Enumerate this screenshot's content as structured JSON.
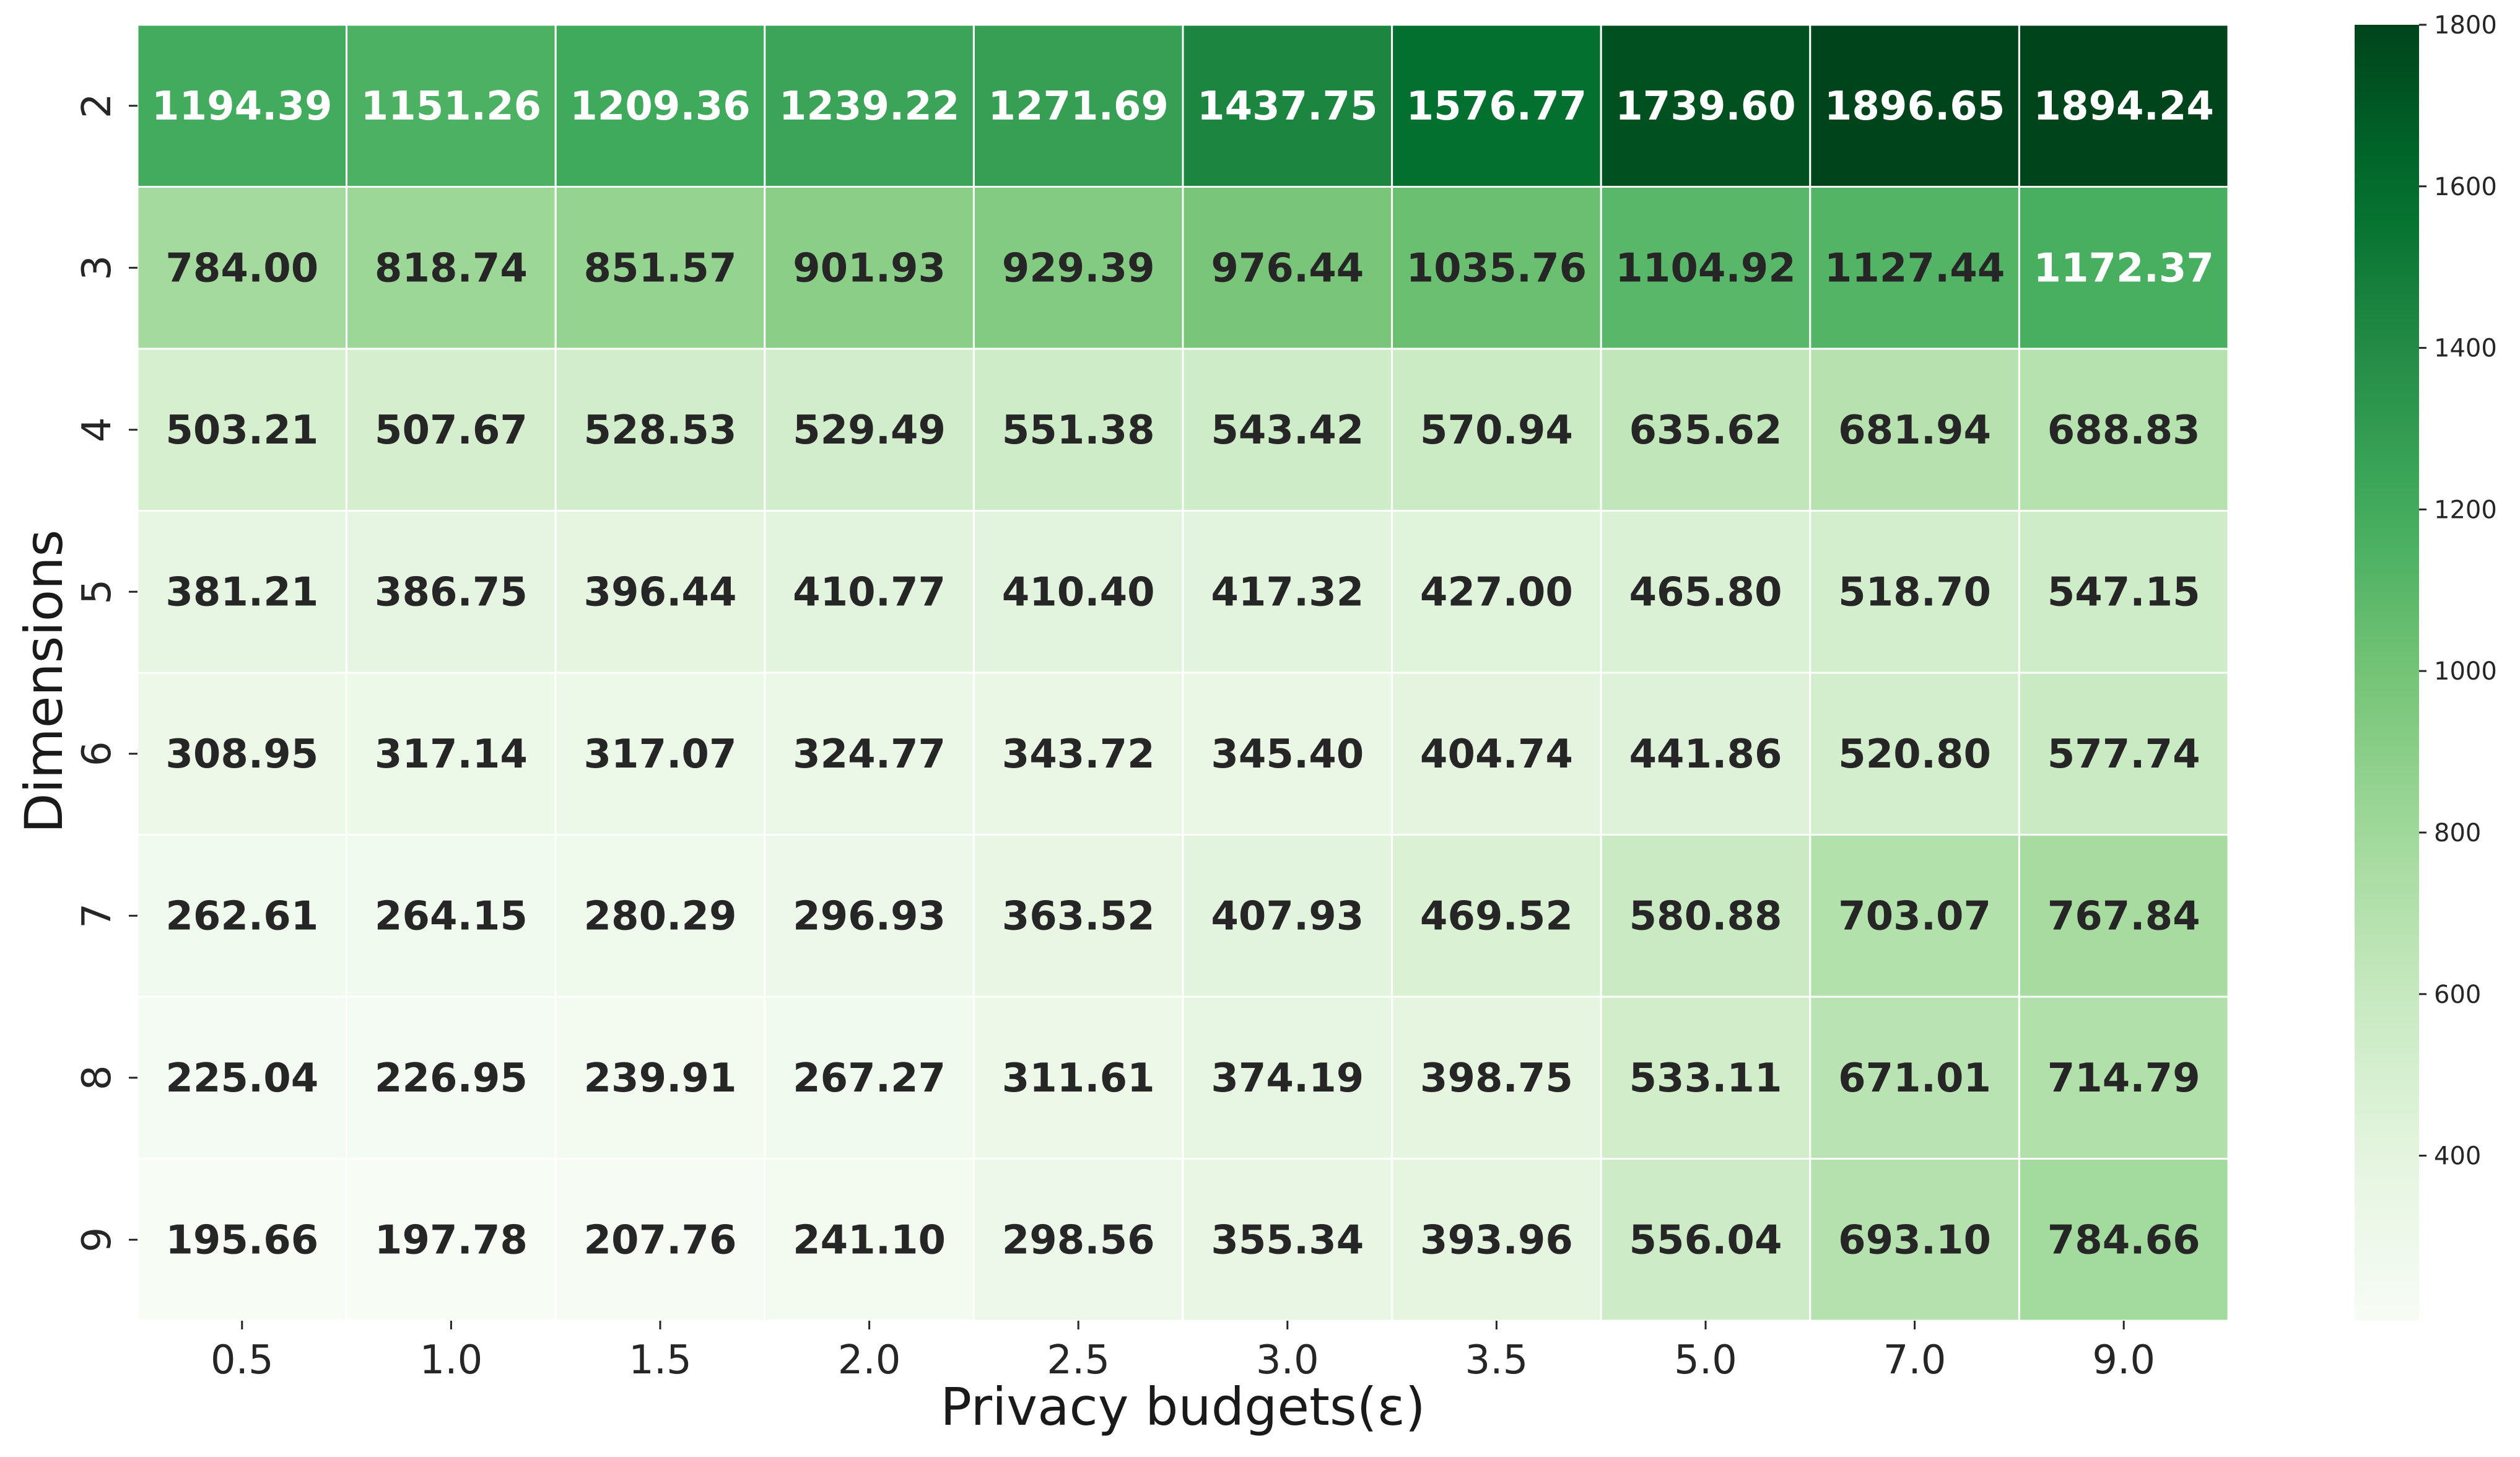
{
  "chart_data": {
    "type": "heatmap",
    "title": "",
    "xlabel": "Privacy budgets(ε)",
    "ylabel": "Dimensions",
    "x_categories": [
      "0.5",
      "1.0",
      "1.5",
      "2.0",
      "2.5",
      "3.0",
      "3.5",
      "5.0",
      "7.0",
      "9.0"
    ],
    "y_categories": [
      "2",
      "3",
      "4",
      "5",
      "6",
      "7",
      "8",
      "9"
    ],
    "values": [
      [
        1194.39,
        1151.26,
        1209.36,
        1239.22,
        1271.69,
        1437.75,
        1576.77,
        1739.6,
        1896.65,
        1894.24
      ],
      [
        784.0,
        818.74,
        851.57,
        901.93,
        929.39,
        976.44,
        1035.76,
        1104.92,
        1127.44,
        1172.37
      ],
      [
        503.21,
        507.67,
        528.53,
        529.49,
        551.38,
        543.42,
        570.94,
        635.62,
        681.94,
        688.83
      ],
      [
        381.21,
        386.75,
        396.44,
        410.77,
        410.4,
        417.32,
        427.0,
        465.8,
        518.7,
        547.15
      ],
      [
        308.95,
        317.14,
        317.07,
        324.77,
        343.72,
        345.4,
        404.74,
        441.86,
        520.8,
        577.74
      ],
      [
        262.61,
        264.15,
        280.29,
        296.93,
        363.52,
        407.93,
        469.52,
        580.88,
        703.07,
        767.84
      ],
      [
        225.04,
        226.95,
        239.91,
        267.27,
        311.61,
        374.19,
        398.75,
        533.11,
        671.01,
        714.79
      ],
      [
        195.66,
        197.78,
        207.76,
        241.1,
        298.56,
        355.34,
        393.96,
        556.04,
        693.1,
        784.66
      ]
    ],
    "colormap": "Greens",
    "color_range": [
      195.66,
      1800
    ],
    "colorbar_ticks": [
      "400",
      "600",
      "800",
      "1000",
      "1200",
      "1400",
      "1600",
      "1800"
    ],
    "grid": false,
    "cell_border_color": "#ffffff",
    "dark_text_color": "#262626",
    "light_text_color": "#ffffff"
  }
}
